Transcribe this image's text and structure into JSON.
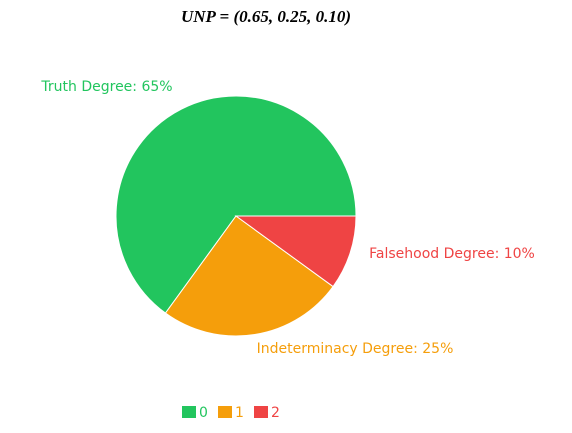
{
  "chart_data": {
    "type": "pie",
    "title": "UNP = (0.65, 0.25, 0.10)",
    "categories": [
      "0",
      "1",
      "2"
    ],
    "values": [
      65,
      25,
      10
    ],
    "value_labels": [
      "Truth Degree: 65%",
      "Indeterminacy Degree: 25%",
      "Falsehood Degree: 10%"
    ],
    "colors": [
      "#22c55e",
      "#f59e0b",
      "#ef4444"
    ]
  }
}
